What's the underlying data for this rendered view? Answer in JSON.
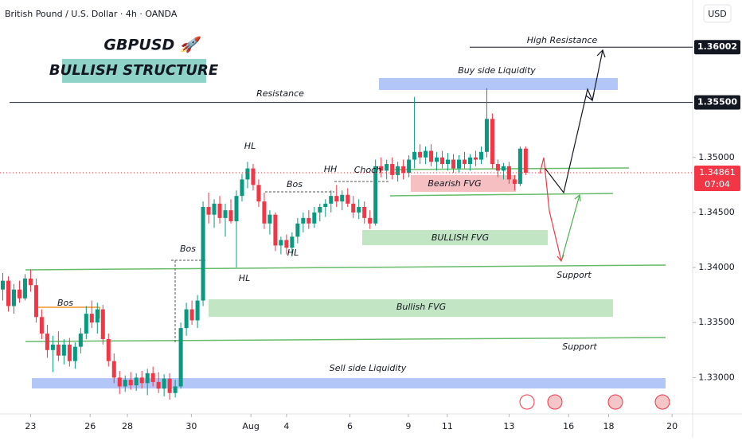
{
  "chart_data": {
    "type": "candlestick",
    "title": "British Pound / U.S. Dollar · 4h · OANDA",
    "currency": "USD",
    "up_color": "#089981",
    "down_color": "#f23645",
    "ylim": [
      1.3267,
      1.3643
    ],
    "xlim": [
      -0.5,
      124
    ],
    "yticks": [
      {
        "value": 1.33,
        "label": "1.33000"
      },
      {
        "value": 1.335,
        "label": "1.33500"
      },
      {
        "value": 1.34,
        "label": "1.34000"
      },
      {
        "value": 1.345,
        "label": "1.34500"
      },
      {
        "value": 1.35,
        "label": "1.35000"
      }
    ],
    "xticks": [
      {
        "value": 5,
        "label": "23"
      },
      {
        "value": 15.7,
        "label": "26"
      },
      {
        "value": 22.4,
        "label": "28"
      },
      {
        "value": 33.9,
        "label": "30"
      },
      {
        "value": 44.6,
        "label": "Aug"
      },
      {
        "value": 51,
        "label": "4"
      },
      {
        "value": 62.4,
        "label": "6"
      },
      {
        "value": 72.9,
        "label": "9"
      },
      {
        "value": 79.9,
        "label": "11"
      },
      {
        "value": 91,
        "label": "13"
      },
      {
        "value": 101.7,
        "label": "16"
      },
      {
        "value": 108.9,
        "label": "18"
      },
      {
        "value": 120.3,
        "label": "20"
      }
    ],
    "price_levels": [
      {
        "value": 1.36002,
        "label": "1.36002"
      },
      {
        "value": 1.355,
        "label": "1.35500"
      }
    ],
    "last_price": {
      "value": 1.34861,
      "label": "1.34861"
    },
    "countdown": "07:04",
    "annotations": [
      "GBPUSD 🚀",
      "BULLISH STRUCTURE",
      "High Resistance",
      "Buy side Liquidity",
      "Resistance",
      "HL",
      "HH",
      "Choch",
      "Bos",
      "Bearish FVG",
      "BULLISH FVG",
      "Bos",
      "HL",
      "HL",
      "Support",
      "Bos",
      "Bullish FVG",
      "Support",
      "Sell side Liquidity"
    ],
    "ohlc": [
      [
        1.338,
        1.3395,
        1.337,
        1.3388
      ],
      [
        1.3388,
        1.3392,
        1.336,
        1.3365
      ],
      [
        1.3365,
        1.3385,
        1.3358,
        1.338
      ],
      [
        1.338,
        1.3388,
        1.3368,
        1.3372
      ],
      [
        1.3372,
        1.3394,
        1.337,
        1.339
      ],
      [
        1.339,
        1.3398,
        1.3378,
        1.3384
      ],
      [
        1.3384,
        1.339,
        1.335,
        1.3355
      ],
      [
        1.3355,
        1.3362,
        1.3335,
        1.334
      ],
      [
        1.334,
        1.3348,
        1.3318,
        1.3325
      ],
      [
        1.3325,
        1.3338,
        1.3305,
        1.333
      ],
      [
        1.333,
        1.3342,
        1.3315,
        1.332
      ],
      [
        1.332,
        1.3335,
        1.3312,
        1.333
      ],
      [
        1.333,
        1.3336,
        1.331,
        1.3315
      ],
      [
        1.3315,
        1.3332,
        1.3308,
        1.3328
      ],
      [
        1.3328,
        1.3345,
        1.3322,
        1.334
      ],
      [
        1.334,
        1.3365,
        1.3335,
        1.3358
      ],
      [
        1.3358,
        1.337,
        1.3345,
        1.335
      ],
      [
        1.335,
        1.3368,
        1.334,
        1.3362
      ],
      [
        1.3362,
        1.3366,
        1.333,
        1.3335
      ],
      [
        1.3335,
        1.334,
        1.331,
        1.3315
      ],
      [
        1.3315,
        1.3322,
        1.3295,
        1.33
      ],
      [
        1.33,
        1.3306,
        1.3285,
        1.3292
      ],
      [
        1.3292,
        1.3302,
        1.3287,
        1.3298
      ],
      [
        1.3298,
        1.3305,
        1.3289,
        1.3293
      ],
      [
        1.3293,
        1.3304,
        1.3288,
        1.33
      ],
      [
        1.33,
        1.3306,
        1.329,
        1.3295
      ],
      [
        1.3295,
        1.3308,
        1.3284,
        1.3304
      ],
      [
        1.3304,
        1.331,
        1.3292,
        1.3296
      ],
      [
        1.3296,
        1.3305,
        1.3286,
        1.329
      ],
      [
        1.329,
        1.3303,
        1.3283,
        1.3299
      ],
      [
        1.3299,
        1.3304,
        1.328,
        1.3286
      ],
      [
        1.3286,
        1.3298,
        1.3282,
        1.3292
      ],
      [
        1.3292,
        1.335,
        1.329,
        1.3345
      ],
      [
        1.3345,
        1.3368,
        1.3338,
        1.3362
      ],
      [
        1.3362,
        1.337,
        1.3348,
        1.3352
      ],
      [
        1.3352,
        1.3375,
        1.3345,
        1.337
      ],
      [
        1.337,
        1.346,
        1.3365,
        1.3455
      ],
      [
        1.3455,
        1.3468,
        1.344,
        1.3448
      ],
      [
        1.3448,
        1.3462,
        1.3436,
        1.3458
      ],
      [
        1.3458,
        1.3465,
        1.344,
        1.3445
      ],
      [
        1.3445,
        1.3458,
        1.3428,
        1.3452
      ],
      [
        1.3452,
        1.3462,
        1.344,
        1.3442
      ],
      [
        1.3442,
        1.347,
        1.34,
        1.3465
      ],
      [
        1.3465,
        1.3485,
        1.346,
        1.348
      ],
      [
        1.348,
        1.3496,
        1.3472,
        1.349
      ],
      [
        1.349,
        1.3494,
        1.347,
        1.3475
      ],
      [
        1.3475,
        1.348,
        1.3455,
        1.346
      ],
      [
        1.346,
        1.3468,
        1.3435,
        1.344
      ],
      [
        1.344,
        1.3452,
        1.343,
        1.3448
      ],
      [
        1.3448,
        1.345,
        1.3415,
        1.342
      ],
      [
        1.342,
        1.3428,
        1.3412,
        1.3425
      ],
      [
        1.3425,
        1.343,
        1.3412,
        1.3418
      ],
      [
        1.3418,
        1.3432,
        1.341,
        1.3428
      ],
      [
        1.3428,
        1.3445,
        1.3422,
        1.344
      ],
      [
        1.344,
        1.345,
        1.3432,
        1.3445
      ],
      [
        1.3445,
        1.3452,
        1.3435,
        1.344
      ],
      [
        1.344,
        1.3455,
        1.3436,
        1.345
      ],
      [
        1.345,
        1.3458,
        1.3442,
        1.3455
      ],
      [
        1.3455,
        1.3462,
        1.3446,
        1.3458
      ],
      [
        1.3458,
        1.347,
        1.345,
        1.3465
      ],
      [
        1.3465,
        1.3475,
        1.3455,
        1.346
      ],
      [
        1.346,
        1.347,
        1.3452,
        1.3466
      ],
      [
        1.3466,
        1.3472,
        1.3455,
        1.3458
      ],
      [
        1.3458,
        1.3465,
        1.3445,
        1.345
      ],
      [
        1.345,
        1.3462,
        1.3444,
        1.3455
      ],
      [
        1.3455,
        1.346,
        1.344,
        1.3445
      ],
      [
        1.3445,
        1.3452,
        1.3435,
        1.344
      ],
      [
        1.344,
        1.3498,
        1.3438,
        1.3492
      ],
      [
        1.3492,
        1.35,
        1.3482,
        1.3488
      ],
      [
        1.3488,
        1.3498,
        1.348,
        1.3494
      ],
      [
        1.3494,
        1.35,
        1.348,
        1.3484
      ],
      [
        1.3484,
        1.3496,
        1.3478,
        1.3492
      ],
      [
        1.3492,
        1.3498,
        1.348,
        1.3486
      ],
      [
        1.3486,
        1.3502,
        1.3482,
        1.3498
      ],
      [
        1.3498,
        1.3555,
        1.349,
        1.3505
      ],
      [
        1.3505,
        1.3512,
        1.3494,
        1.35
      ],
      [
        1.35,
        1.351,
        1.3494,
        1.3506
      ],
      [
        1.3506,
        1.3512,
        1.3492,
        1.3496
      ],
      [
        1.3496,
        1.3505,
        1.3488,
        1.35
      ],
      [
        1.35,
        1.3506,
        1.349,
        1.3494
      ],
      [
        1.3494,
        1.3504,
        1.3488,
        1.3498
      ],
      [
        1.3498,
        1.3503,
        1.3486,
        1.349
      ],
      [
        1.349,
        1.3502,
        1.3486,
        1.3498
      ],
      [
        1.3498,
        1.3505,
        1.349,
        1.3494
      ],
      [
        1.3494,
        1.3503,
        1.3488,
        1.35
      ],
      [
        1.35,
        1.3506,
        1.3492,
        1.3498
      ],
      [
        1.3498,
        1.351,
        1.3494,
        1.3505
      ],
      [
        1.3505,
        1.3563,
        1.35,
        1.3535
      ],
      [
        1.3535,
        1.354,
        1.349,
        1.3494
      ],
      [
        1.3494,
        1.3498,
        1.3482,
        1.3488
      ],
      [
        1.3488,
        1.3495,
        1.348,
        1.3492
      ],
      [
        1.3492,
        1.3496,
        1.3476,
        1.348
      ],
      [
        1.348,
        1.3484,
        1.347,
        1.3476
      ],
      [
        1.3476,
        1.351,
        1.3474,
        1.3508
      ],
      [
        1.3508,
        1.351,
        1.3484,
        1.34861
      ]
    ]
  }
}
